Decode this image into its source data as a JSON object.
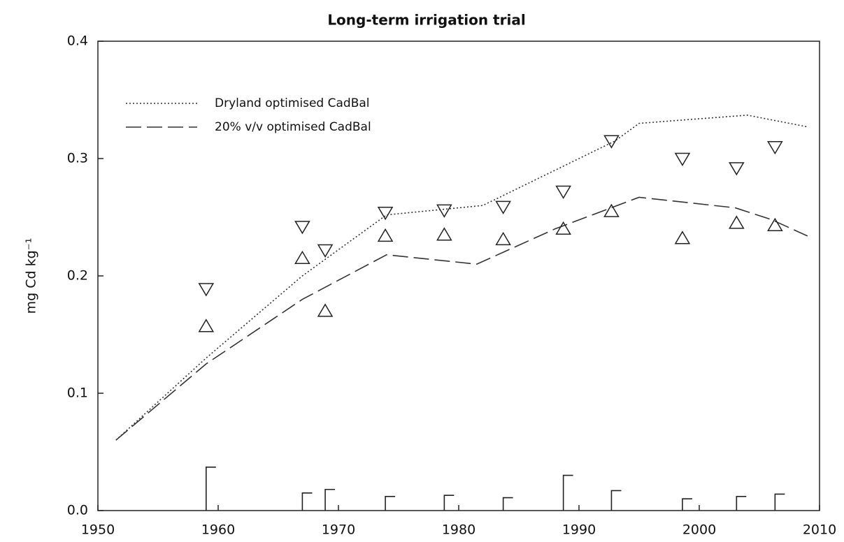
{
  "chart_data": {
    "type": "line",
    "title": "Long-term irrigation trial",
    "y_label": "mg Cd kg⁻¹",
    "xlim": [
      1950,
      2010
    ],
    "xticks": [
      1950,
      1960,
      1970,
      1980,
      1990,
      2000,
      2010
    ],
    "ylim": [
      0,
      0.4
    ],
    "yticks": [
      {
        "value": 0,
        "label": "0.0"
      },
      0.1,
      0.2,
      0.3,
      0.4
    ],
    "legend": "upper left",
    "series": [
      {
        "name": "Dryland optimised CadBal",
        "color": "#333333",
        "style": "dotted",
        "x": [
          1951.5,
          1959,
          1967,
          1974,
          1982,
          1988,
          1993,
          1995,
          2004,
          2009
        ],
        "values": [
          0.06,
          0.13,
          0.2,
          0.252,
          0.26,
          0.29,
          0.315,
          0.33,
          0.337,
          0.327
        ]
      },
      {
        "name": "20% v/v optimised CadBal",
        "color": "#333333",
        "style": "dashed",
        "x": [
          1951.5,
          1959,
          1967,
          1974,
          1981.5,
          1988,
          1995,
          2003,
          2006,
          2009
        ],
        "values": [
          0.06,
          0.125,
          0.18,
          0.218,
          0.21,
          0.24,
          0.267,
          0.258,
          0.248,
          0.234
        ]
      },
      {
        "color": "#222222",
        "style": "triangle-down",
        "x": [
          1959,
          1967,
          1968.9,
          1973.9,
          1978.8,
          1983.7,
          1988.7,
          1992.7,
          1998.6,
          2003.1,
          2006.3
        ],
        "values": [
          0.189,
          0.242,
          0.222,
          0.254,
          0.256,
          0.259,
          0.272,
          0.315,
          0.3,
          0.292,
          0.31
        ]
      },
      {
        "color": "#222222",
        "style": "triangle-up",
        "x": [
          1959,
          1967,
          1968.9,
          1973.9,
          1978.8,
          1983.7,
          1988.7,
          1992.7,
          1998.6,
          2003.1,
          2006.3
        ],
        "values": [
          0.157,
          0.215,
          0.17,
          0.234,
          0.235,
          0.231,
          0.24,
          0.255,
          0.232,
          0.245,
          0.243
        ]
      },
      {
        "color": "#222222",
        "style": "t-bar",
        "x": [
          1959,
          1967,
          1968.9,
          1973.9,
          1978.8,
          1983.7,
          1988.7,
          1992.7,
          1998.6,
          2003.1,
          2006.3
        ],
        "values": [
          0.037,
          0.015,
          0.018,
          0.012,
          0.013,
          0.011,
          0.03,
          0.017,
          0.01,
          0.012,
          0.014
        ]
      }
    ]
  }
}
